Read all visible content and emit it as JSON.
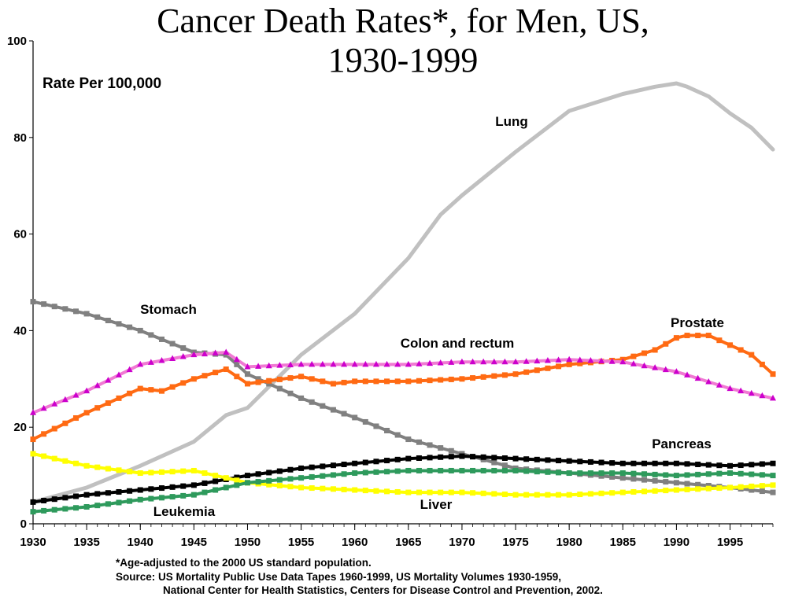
{
  "title": {
    "line1": "Cancer Death Rates*, for Men, US,",
    "line2": "1930-1999"
  },
  "footnotes": {
    "note": "*Age-adjusted to the 2000 US standard population.",
    "source1": "Source: US Mortality Public Use Data Tapes 1960-1999, US Mortality Volumes 1930-1959,",
    "source2": "National Center for Health Statistics, Centers for Disease Control and Prevention, 2002."
  },
  "chart_data": {
    "type": "line",
    "ylabel": "Rate Per 100,000",
    "xlabel": "",
    "xlim": [
      1930,
      1999
    ],
    "ylim": [
      0,
      100
    ],
    "xticks": [
      1930,
      1935,
      1940,
      1945,
      1950,
      1955,
      1960,
      1965,
      1970,
      1975,
      1980,
      1985,
      1990,
      1995
    ],
    "yticks": [
      0,
      20,
      40,
      60,
      80,
      100
    ],
    "grid": false,
    "legend": "none",
    "series": [
      {
        "name": "Lung",
        "color": "#c0c0c0",
        "marker": "none",
        "x": [
          1930,
          1935,
          1940,
          1945,
          1948,
          1950,
          1955,
          1960,
          1965,
          1968,
          1970,
          1975,
          1980,
          1985,
          1988,
          1990,
          1991,
          1993,
          1995,
          1997,
          1999
        ],
        "y": [
          4.5,
          7.5,
          12,
          17,
          22.5,
          24,
          35,
          43.5,
          55,
          64,
          68,
          77,
          85.5,
          89,
          90.5,
          91.2,
          90.5,
          88.5,
          85,
          82,
          77.5
        ]
      },
      {
        "name": "Stomach",
        "color": "#808080",
        "marker": "square",
        "x": [
          1930,
          1935,
          1940,
          1945,
          1948,
          1950,
          1955,
          1960,
          1965,
          1970,
          1975,
          1980,
          1985,
          1990,
          1995,
          1999
        ],
        "y": [
          46,
          43.5,
          40,
          35.5,
          35,
          31,
          26,
          22,
          17.5,
          14.5,
          11.5,
          10.5,
          9.5,
          8.5,
          7.5,
          6.5
        ]
      },
      {
        "name": "Prostate",
        "color": "#ff6a13",
        "marker": "square",
        "x": [
          1930,
          1935,
          1940,
          1942,
          1945,
          1948,
          1950,
          1955,
          1958,
          1960,
          1965,
          1970,
          1975,
          1980,
          1985,
          1988,
          1990,
          1991,
          1993,
          1995,
          1997,
          1999
        ],
        "y": [
          17.5,
          23,
          28,
          27.5,
          30,
          32,
          29,
          30.5,
          29,
          29.5,
          29.5,
          30,
          31,
          33,
          34,
          36,
          38.5,
          39,
          39,
          37,
          35,
          31
        ]
      },
      {
        "name": "Colon and rectum",
        "color": "#f07ad3",
        "marker": "triangle",
        "x": [
          1930,
          1935,
          1940,
          1945,
          1948,
          1950,
          1955,
          1960,
          1965,
          1970,
          1975,
          1980,
          1985,
          1990,
          1995,
          1999
        ],
        "y": [
          23,
          27.5,
          33,
          35,
          35.5,
          32.5,
          33,
          33,
          33,
          33.5,
          33.5,
          34,
          33.5,
          31.5,
          28,
          26
        ]
      },
      {
        "name": "Pancreas",
        "color": "#000000",
        "marker": "square",
        "x": [
          1930,
          1935,
          1940,
          1945,
          1950,
          1955,
          1960,
          1965,
          1970,
          1975,
          1980,
          1985,
          1990,
          1995,
          1999
        ],
        "y": [
          4.5,
          6,
          7,
          8,
          10,
          11.5,
          12.5,
          13.5,
          14,
          13.5,
          13,
          12.5,
          12.5,
          12,
          12.5
        ]
      },
      {
        "name": "Liver",
        "color": "#ffff00",
        "marker": "square",
        "x": [
          1930,
          1935,
          1940,
          1945,
          1948,
          1950,
          1955,
          1960,
          1965,
          1970,
          1975,
          1980,
          1985,
          1990,
          1995,
          1999
        ],
        "y": [
          14.5,
          12,
          10.5,
          11,
          9.5,
          8.5,
          7.5,
          7,
          6.5,
          6.5,
          6,
          6,
          6.5,
          7,
          7.5,
          8
        ]
      },
      {
        "name": "Leukemia",
        "color": "#2e9a5c",
        "marker": "square",
        "x": [
          1930,
          1935,
          1940,
          1945,
          1950,
          1955,
          1960,
          1965,
          1970,
          1975,
          1980,
          1985,
          1990,
          1995,
          1999
        ],
        "y": [
          2.5,
          3.5,
          5,
          6,
          8.5,
          9.5,
          10.5,
          11,
          11,
          11,
          10.5,
          10.5,
          10,
          10.5,
          10
        ]
      }
    ],
    "annotations": [
      {
        "text": "Lung",
        "series": "Lung"
      },
      {
        "text": "Stomach",
        "series": "Stomach"
      },
      {
        "text": "Prostate",
        "series": "Prostate"
      },
      {
        "text": "Colon and rectum",
        "series": "Colon and rectum"
      },
      {
        "text": "Pancreas",
        "series": "Pancreas"
      },
      {
        "text": "Liver",
        "series": "Liver"
      },
      {
        "text": "Leukemia",
        "series": "Leukemia"
      }
    ]
  }
}
